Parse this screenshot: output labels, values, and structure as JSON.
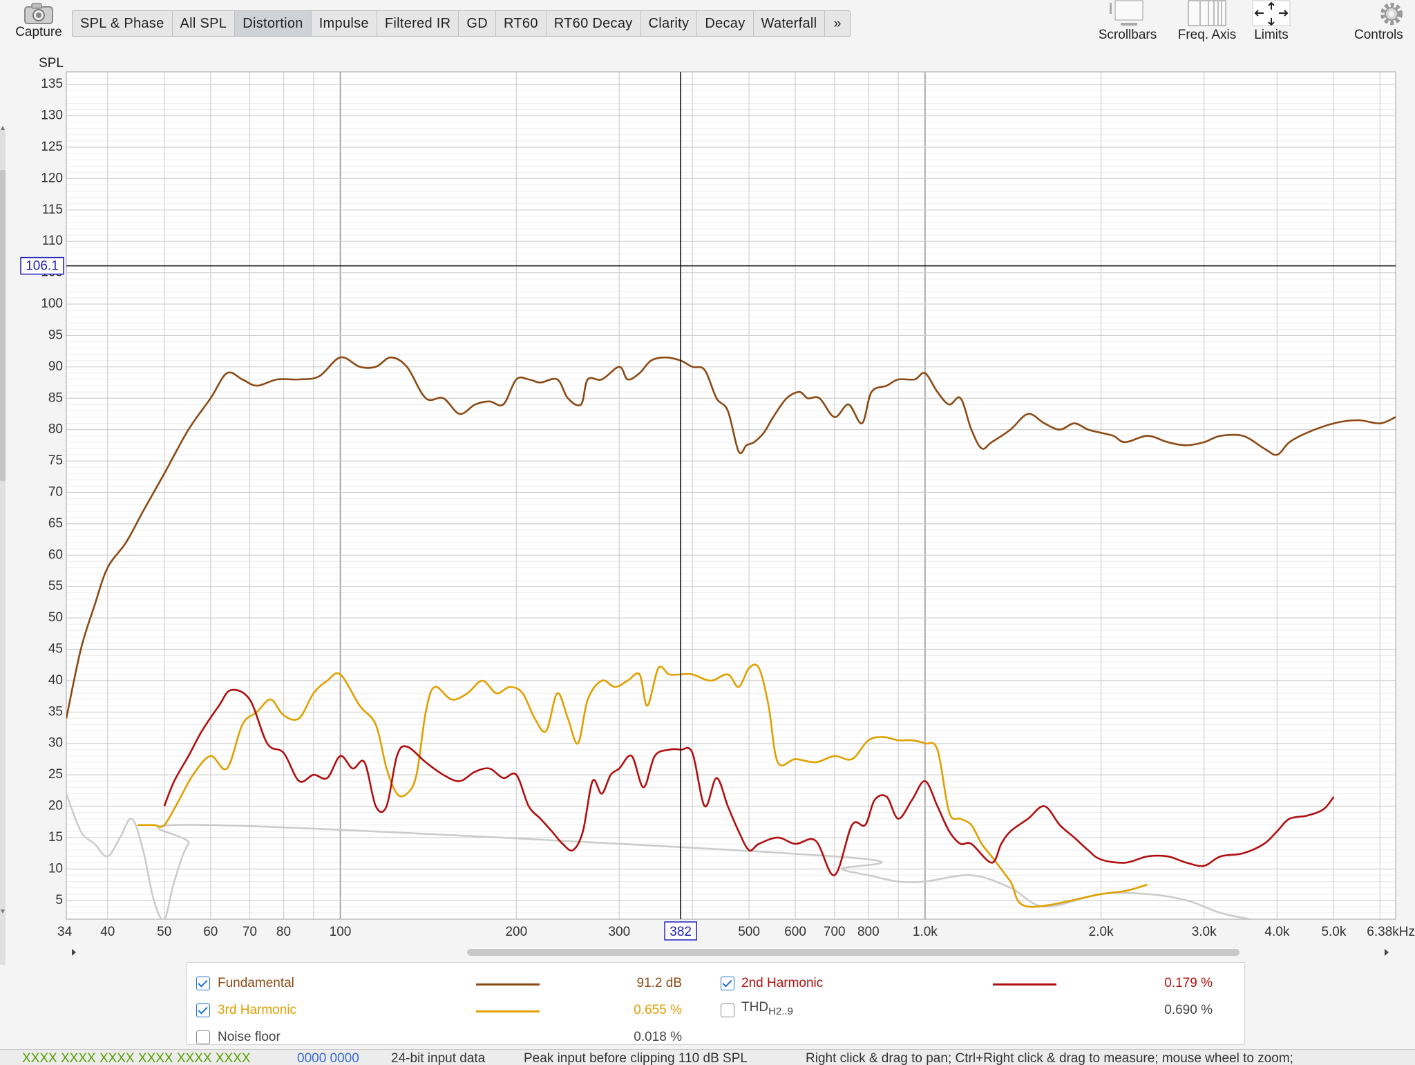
{
  "toolbar": {
    "capture_label": "Capture",
    "tabs": [
      "SPL & Phase",
      "All SPL",
      "Distortion",
      "Impulse",
      "Filtered IR",
      "GD",
      "RT60",
      "RT60 Decay",
      "Clarity",
      "Decay",
      "Waterfall"
    ],
    "more_label": "»",
    "right_buttons": {
      "scrollbars": "Scrollbars",
      "freq_axis": "Freq. Axis",
      "limits": "Limits",
      "controls": "Controls"
    }
  },
  "cursor": {
    "y_readout": "106.1",
    "x_readout": "382"
  },
  "legend": {
    "fundamental": {
      "label": "Fundamental",
      "value": "91.2 dB",
      "checked": true,
      "color": "#8b4a14"
    },
    "h2": {
      "label": "2nd Harmonic",
      "value": "0.179 %",
      "checked": true,
      "color": "#b01010"
    },
    "h3": {
      "label": "3rd Harmonic",
      "value": "0.655 %",
      "checked": true,
      "color": "#e0a000"
    },
    "thd": {
      "label": "THD",
      "sub": "H2..9",
      "value": "0.690 %",
      "checked": false
    },
    "noise": {
      "label": "Noise floor",
      "value": "0.018 %",
      "checked": false,
      "color": "#cccccc"
    }
  },
  "status": {
    "levels": "XXXX XXXX  XXXX XXXX  XXXX XXXX",
    "levels_blue": "0000 0000",
    "input": "24-bit input data",
    "peak": "Peak input before clipping 110 dB SPL",
    "hint": "Right click & drag to pan; Ctrl+Right click & drag to measure; mouse wheel to zoom;"
  },
  "chart_data": {
    "type": "line",
    "ylabel": "SPL",
    "xscale": "log",
    "xlim": [
      34,
      6380
    ],
    "ylim": [
      2,
      137
    ],
    "x_ticks": [
      {
        "v": 34,
        "t": "34"
      },
      {
        "v": 40,
        "t": "40"
      },
      {
        "v": 50,
        "t": "50"
      },
      {
        "v": 60,
        "t": "60"
      },
      {
        "v": 70,
        "t": "70"
      },
      {
        "v": 80,
        "t": "80"
      },
      {
        "v": 100,
        "t": "100"
      },
      {
        "v": 200,
        "t": "200"
      },
      {
        "v": 300,
        "t": "300"
      },
      {
        "v": 500,
        "t": "500"
      },
      {
        "v": 600,
        "t": "600"
      },
      {
        "v": 700,
        "t": "700"
      },
      {
        "v": 800,
        "t": "800"
      },
      {
        "v": 1000,
        "t": "1.0k"
      },
      {
        "v": 2000,
        "t": "2.0k"
      },
      {
        "v": 3000,
        "t": "3.0k"
      },
      {
        "v": 4000,
        "t": "4.0k"
      },
      {
        "v": 5000,
        "t": "5.0k"
      },
      {
        "v": 6380,
        "t": "6.38kHz"
      }
    ],
    "y_ticks": [
      5,
      10,
      15,
      20,
      25,
      30,
      35,
      40,
      45,
      50,
      55,
      60,
      65,
      70,
      75,
      80,
      85,
      90,
      95,
      100,
      105,
      110,
      115,
      120,
      125,
      130,
      135
    ],
    "grid": true,
    "cursor": {
      "x": 382,
      "y": 106.1
    },
    "series": [
      {
        "name": "Fundamental",
        "color": "#8b4a14",
        "points": [
          [
            34,
            34
          ],
          [
            36,
            45
          ],
          [
            38,
            52
          ],
          [
            40,
            58
          ],
          [
            43,
            62
          ],
          [
            46,
            67
          ],
          [
            50,
            73
          ],
          [
            55,
            80
          ],
          [
            60,
            85
          ],
          [
            64,
            89
          ],
          [
            68,
            88
          ],
          [
            72,
            87
          ],
          [
            78,
            88
          ],
          [
            85,
            88
          ],
          [
            92,
            88.5
          ],
          [
            100,
            91.5
          ],
          [
            108,
            90
          ],
          [
            115,
            90
          ],
          [
            122,
            91.5
          ],
          [
            130,
            90
          ],
          [
            140,
            85
          ],
          [
            150,
            85
          ],
          [
            160,
            82.5
          ],
          [
            170,
            84
          ],
          [
            180,
            84.5
          ],
          [
            190,
            84
          ],
          [
            200,
            88
          ],
          [
            210,
            88
          ],
          [
            220,
            87.5
          ],
          [
            235,
            88
          ],
          [
            245,
            85
          ],
          [
            258,
            84
          ],
          [
            265,
            88
          ],
          [
            280,
            88
          ],
          [
            300,
            90
          ],
          [
            310,
            88
          ],
          [
            325,
            89
          ],
          [
            340,
            91
          ],
          [
            360,
            91.5
          ],
          [
            382,
            91
          ],
          [
            400,
            90
          ],
          [
            420,
            89.5
          ],
          [
            440,
            85
          ],
          [
            460,
            83
          ],
          [
            480,
            76.5
          ],
          [
            495,
            77.5
          ],
          [
            510,
            78
          ],
          [
            530,
            79.5
          ],
          [
            550,
            82
          ],
          [
            580,
            85
          ],
          [
            610,
            86
          ],
          [
            630,
            85
          ],
          [
            660,
            85
          ],
          [
            700,
            82
          ],
          [
            740,
            84
          ],
          [
            780,
            81
          ],
          [
            810,
            86
          ],
          [
            860,
            87
          ],
          [
            900,
            88
          ],
          [
            960,
            88
          ],
          [
            1000,
            89
          ],
          [
            1050,
            86
          ],
          [
            1100,
            84
          ],
          [
            1150,
            85
          ],
          [
            1200,
            80
          ],
          [
            1250,
            77
          ],
          [
            1300,
            78
          ],
          [
            1400,
            80
          ],
          [
            1500,
            82.5
          ],
          [
            1600,
            81
          ],
          [
            1700,
            80
          ],
          [
            1800,
            81
          ],
          [
            1900,
            80
          ],
          [
            2000,
            79.5
          ],
          [
            2100,
            79
          ],
          [
            2200,
            78
          ],
          [
            2400,
            79
          ],
          [
            2600,
            78
          ],
          [
            2800,
            77.5
          ],
          [
            3000,
            78
          ],
          [
            3200,
            79
          ],
          [
            3500,
            79
          ],
          [
            3800,
            77
          ],
          [
            4000,
            76
          ],
          [
            4200,
            78
          ],
          [
            4500,
            79.5
          ],
          [
            5000,
            81
          ],
          [
            5500,
            81.5
          ],
          [
            6000,
            81
          ],
          [
            6380,
            82
          ]
        ]
      },
      {
        "name": "2nd Harmonic",
        "color": "#b01010",
        "points": [
          [
            50,
            20
          ],
          [
            52,
            24
          ],
          [
            55,
            28
          ],
          [
            58,
            32
          ],
          [
            62,
            36
          ],
          [
            65,
            38.5
          ],
          [
            70,
            37
          ],
          [
            75,
            30
          ],
          [
            80,
            28.5
          ],
          [
            85,
            24
          ],
          [
            90,
            25
          ],
          [
            95,
            24.5
          ],
          [
            100,
            28
          ],
          [
            105,
            26
          ],
          [
            110,
            27
          ],
          [
            115,
            20
          ],
          [
            120,
            20
          ],
          [
            125,
            28
          ],
          [
            130,
            29.5
          ],
          [
            140,
            27
          ],
          [
            150,
            25
          ],
          [
            160,
            24
          ],
          [
            170,
            25.5
          ],
          [
            180,
            26
          ],
          [
            190,
            24.5
          ],
          [
            200,
            25
          ],
          [
            210,
            20
          ],
          [
            220,
            18
          ],
          [
            230,
            16
          ],
          [
            240,
            14
          ],
          [
            250,
            13
          ],
          [
            260,
            16
          ],
          [
            270,
            24
          ],
          [
            280,
            22
          ],
          [
            290,
            25
          ],
          [
            300,
            26
          ],
          [
            315,
            28
          ],
          [
            330,
            23
          ],
          [
            345,
            28
          ],
          [
            365,
            29
          ],
          [
            382,
            29
          ],
          [
            400,
            28.5
          ],
          [
            420,
            20
          ],
          [
            440,
            24.5
          ],
          [
            460,
            20
          ],
          [
            480,
            16
          ],
          [
            500,
            13
          ],
          [
            520,
            14
          ],
          [
            560,
            15
          ],
          [
            600,
            14
          ],
          [
            650,
            14.5
          ],
          [
            700,
            9
          ],
          [
            750,
            17
          ],
          [
            790,
            17
          ],
          [
            820,
            21
          ],
          [
            860,
            21.5
          ],
          [
            900,
            18
          ],
          [
            950,
            21
          ],
          [
            1000,
            24
          ],
          [
            1050,
            20
          ],
          [
            1100,
            16
          ],
          [
            1150,
            14
          ],
          [
            1200,
            14
          ],
          [
            1300,
            11
          ],
          [
            1350,
            14
          ],
          [
            1400,
            16
          ],
          [
            1500,
            18
          ],
          [
            1600,
            20
          ],
          [
            1700,
            17
          ],
          [
            1800,
            15
          ],
          [
            1900,
            13
          ],
          [
            2000,
            11.5
          ],
          [
            2200,
            11
          ],
          [
            2400,
            12
          ],
          [
            2600,
            12
          ],
          [
            2800,
            11
          ],
          [
            3000,
            10.5
          ],
          [
            3200,
            12
          ],
          [
            3500,
            12.5
          ],
          [
            3800,
            14
          ],
          [
            4000,
            16
          ],
          [
            4200,
            18
          ],
          [
            4500,
            18.5
          ],
          [
            4800,
            19.5
          ],
          [
            5000,
            21.5
          ]
        ]
      },
      {
        "name": "3rd Harmonic",
        "color": "#e0a000",
        "points": [
          [
            45,
            17
          ],
          [
            48,
            17
          ],
          [
            50,
            17
          ],
          [
            53,
            21
          ],
          [
            56,
            25
          ],
          [
            60,
            28
          ],
          [
            64,
            26
          ],
          [
            68,
            33
          ],
          [
            72,
            35
          ],
          [
            76,
            37
          ],
          [
            80,
            34.5
          ],
          [
            85,
            34
          ],
          [
            90,
            38
          ],
          [
            95,
            40
          ],
          [
            100,
            41
          ],
          [
            108,
            36
          ],
          [
            115,
            33
          ],
          [
            120,
            26
          ],
          [
            125,
            22
          ],
          [
            130,
            22
          ],
          [
            135,
            25
          ],
          [
            140,
            35
          ],
          [
            145,
            39
          ],
          [
            155,
            37
          ],
          [
            165,
            38
          ],
          [
            175,
            40
          ],
          [
            185,
            38
          ],
          [
            195,
            39
          ],
          [
            205,
            38
          ],
          [
            215,
            34
          ],
          [
            225,
            32
          ],
          [
            235,
            38
          ],
          [
            245,
            34
          ],
          [
            255,
            30
          ],
          [
            265,
            37
          ],
          [
            280,
            40
          ],
          [
            295,
            39
          ],
          [
            310,
            40
          ],
          [
            325,
            41
          ],
          [
            335,
            36
          ],
          [
            350,
            42
          ],
          [
            365,
            41
          ],
          [
            382,
            41
          ],
          [
            400,
            41
          ],
          [
            430,
            40
          ],
          [
            460,
            41
          ],
          [
            480,
            39
          ],
          [
            500,
            42
          ],
          [
            520,
            42
          ],
          [
            540,
            36
          ],
          [
            560,
            27
          ],
          [
            600,
            27.5
          ],
          [
            650,
            27
          ],
          [
            700,
            28
          ],
          [
            750,
            27.5
          ],
          [
            800,
            30.5
          ],
          [
            850,
            31
          ],
          [
            900,
            30.5
          ],
          [
            950,
            30.5
          ],
          [
            1000,
            30
          ],
          [
            1050,
            29
          ],
          [
            1100,
            19
          ],
          [
            1150,
            18
          ],
          [
            1200,
            17
          ],
          [
            1250,
            14
          ],
          [
            1300,
            12
          ],
          [
            1400,
            8
          ],
          [
            1500,
            4
          ],
          [
            2000,
            6
          ],
          [
            2200,
            6.5
          ],
          [
            2400,
            7.5
          ]
        ]
      },
      {
        "name": "Noise floor",
        "color": "#cccccc",
        "points": [
          [
            34,
            22
          ],
          [
            36,
            16
          ],
          [
            38,
            14
          ],
          [
            40,
            12
          ],
          [
            42,
            15
          ],
          [
            44,
            18
          ],
          [
            46,
            13
          ],
          [
            48,
            5
          ],
          [
            50,
            2
          ],
          [
            52,
            8
          ],
          [
            55,
            14
          ],
          [
            60,
            17
          ],
          [
            700,
            12
          ],
          [
            720,
            10
          ],
          [
            800,
            9
          ],
          [
            900,
            8
          ],
          [
            1000,
            8
          ],
          [
            1200,
            9
          ],
          [
            1400,
            7
          ],
          [
            1600,
            4
          ],
          [
            2000,
            6
          ],
          [
            2400,
            6
          ],
          [
            2800,
            5
          ],
          [
            3200,
            3
          ],
          [
            3600,
            2
          ]
        ]
      }
    ]
  }
}
